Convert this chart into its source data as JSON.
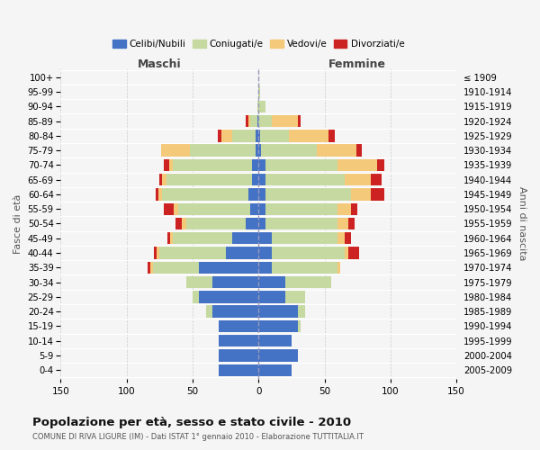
{
  "age_groups": [
    "0-4",
    "5-9",
    "10-14",
    "15-19",
    "20-24",
    "25-29",
    "30-34",
    "35-39",
    "40-44",
    "45-49",
    "50-54",
    "55-59",
    "60-64",
    "65-69",
    "70-74",
    "75-79",
    "80-84",
    "85-89",
    "90-94",
    "95-99",
    "100+"
  ],
  "birth_years": [
    "2005-2009",
    "2000-2004",
    "1995-1999",
    "1990-1994",
    "1985-1989",
    "1980-1984",
    "1975-1979",
    "1970-1974",
    "1965-1969",
    "1960-1964",
    "1955-1959",
    "1950-1954",
    "1945-1949",
    "1940-1944",
    "1935-1939",
    "1930-1934",
    "1925-1929",
    "1920-1924",
    "1915-1919",
    "1910-1914",
    "≤ 1909"
  ],
  "maschi": {
    "celibi": [
      30,
      30,
      30,
      30,
      35,
      45,
      35,
      45,
      25,
      20,
      10,
      6,
      8,
      5,
      5,
      2,
      2,
      1,
      0,
      0,
      0
    ],
    "coniugati": [
      0,
      0,
      0,
      0,
      5,
      5,
      20,
      35,
      50,
      45,
      45,
      55,
      65,
      65,
      60,
      50,
      18,
      5,
      1,
      0,
      0
    ],
    "vedovi": [
      0,
      0,
      0,
      0,
      0,
      0,
      0,
      2,
      2,
      2,
      3,
      3,
      3,
      3,
      3,
      22,
      8,
      2,
      0,
      0,
      0
    ],
    "divorziati": [
      0,
      0,
      0,
      0,
      0,
      0,
      0,
      2,
      2,
      2,
      5,
      8,
      2,
      2,
      4,
      0,
      3,
      2,
      0,
      0,
      0
    ]
  },
  "femmine": {
    "nubili": [
      25,
      30,
      25,
      30,
      30,
      20,
      20,
      10,
      10,
      10,
      5,
      5,
      5,
      5,
      5,
      2,
      1,
      0,
      0,
      0,
      0
    ],
    "coniugate": [
      0,
      0,
      0,
      2,
      5,
      15,
      35,
      50,
      55,
      50,
      55,
      55,
      65,
      60,
      55,
      42,
      22,
      10,
      5,
      1,
      0
    ],
    "vedove": [
      0,
      0,
      0,
      0,
      0,
      0,
      0,
      2,
      3,
      5,
      8,
      10,
      15,
      20,
      30,
      30,
      30,
      20,
      0,
      0,
      0
    ],
    "divorziate": [
      0,
      0,
      0,
      0,
      0,
      0,
      0,
      0,
      8,
      5,
      5,
      5,
      10,
      8,
      5,
      4,
      5,
      2,
      0,
      0,
      0
    ]
  },
  "colors": {
    "celibi": "#4472c4",
    "coniugati": "#c5d9a0",
    "vedovi": "#f5c97a",
    "divorziati": "#cc2222"
  },
  "xlim": 150,
  "title": "Popolazione per età, sesso e stato civile - 2010",
  "subtitle": "COMUNE DI RIVA LIGURE (IM) - Dati ISTAT 1° gennaio 2010 - Elaborazione TUTTITALIA.IT",
  "ylabel_left": "Fasce di età",
  "ylabel_right": "Anni di nascita",
  "xlabel_maschi": "Maschi",
  "xlabel_femmine": "Femmine",
  "bg_color": "#f5f5f5",
  "grid_color": "#cccccc"
}
